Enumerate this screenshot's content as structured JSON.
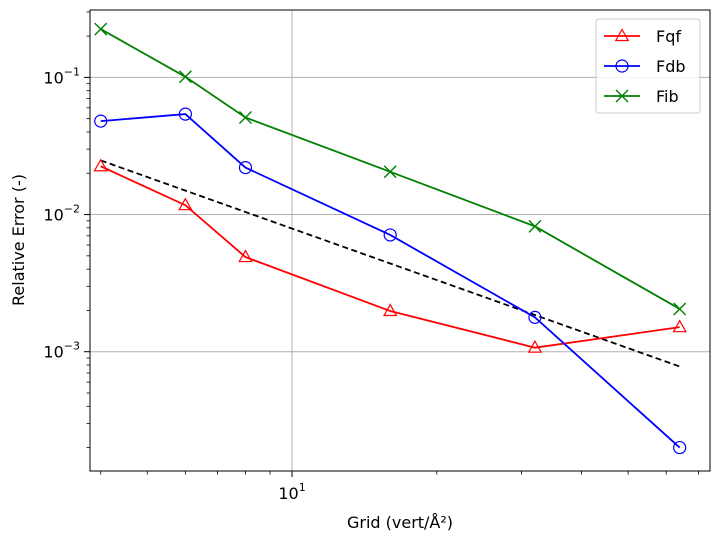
{
  "chart_data": {
    "type": "line",
    "xscale": "log",
    "yscale": "log",
    "xlim": [
      3.8,
      74
    ],
    "ylim": [
      0.000135,
      0.31
    ],
    "xlabel": "Grid (vert/Å²)",
    "ylabel": "Relative Error (-)",
    "grid": true,
    "legend_position": "top-right",
    "x_ticks": [
      {
        "value": 10,
        "base": "10",
        "exp": "1"
      }
    ],
    "y_ticks": [
      {
        "value": 0.1,
        "base": "10",
        "exp": "−1"
      },
      {
        "value": 0.01,
        "base": "10",
        "exp": "−2"
      },
      {
        "value": 0.001,
        "base": "10",
        "exp": "−3"
      }
    ],
    "x_minor_ticks": [
      4,
      5,
      6,
      7,
      8,
      9,
      20,
      30,
      40,
      50,
      60,
      70
    ],
    "x": [
      4,
      6,
      8,
      16,
      32,
      64
    ],
    "series": [
      {
        "name": "Fqf",
        "color": "#ff0000",
        "marker": "triangle",
        "values": [
          0.0225,
          0.0117,
          0.0049,
          0.00198,
          0.00107,
          0.00151
        ]
      },
      {
        "name": "Fdb",
        "color": "#0000ff",
        "marker": "circle",
        "values": [
          0.048,
          0.054,
          0.022,
          0.0071,
          0.00178,
          0.0002
        ]
      },
      {
        "name": "Fib",
        "color": "#008000",
        "marker": "x",
        "values": [
          0.225,
          0.101,
          0.051,
          0.0205,
          0.0082,
          0.00205
        ]
      }
    ],
    "reference_line": {
      "color": "#000000",
      "style": "dashed",
      "x": [
        4,
        64
      ],
      "values": [
        0.0248,
        0.00078
      ]
    }
  }
}
